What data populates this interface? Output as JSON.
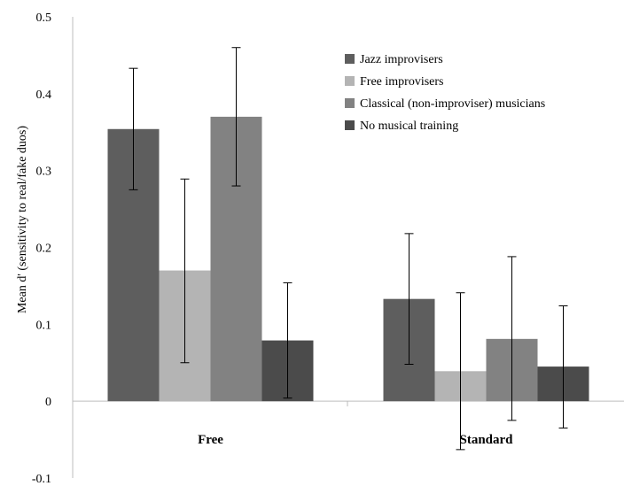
{
  "chart_data": {
    "type": "bar",
    "title": "",
    "xlabel": "",
    "ylabel": "Mean d' (sensitivity to real/fake duos)",
    "ylim": [
      -0.1,
      0.5
    ],
    "yticks": [
      "-0.1",
      "0",
      "0.1",
      "0.2",
      "0.3",
      "0.4",
      "0.5"
    ],
    "categories": [
      "Free",
      "Standard"
    ],
    "grid": false,
    "legend": "top-right",
    "error_bars": true,
    "series": [
      {
        "name": "Jazz improvisers",
        "color": "#5e5e5e",
        "values": [
          0.354,
          0.133
        ],
        "err_low": [
          0.275,
          0.048
        ],
        "err_high": [
          0.433,
          0.218
        ]
      },
      {
        "name": "Free improvisers",
        "color": "#b4b4b4",
        "values": [
          0.17,
          0.039
        ],
        "err_low": [
          0.05,
          -0.063
        ],
        "err_high": [
          0.289,
          0.141
        ]
      },
      {
        "name": "Classical (non-improviser) musicians",
        "color": "#828282",
        "values": [
          0.37,
          0.081
        ],
        "err_low": [
          0.28,
          -0.025
        ],
        "err_high": [
          0.46,
          0.188
        ]
      },
      {
        "name": "No musical training",
        "color": "#4b4b4b",
        "values": [
          0.079,
          0.045
        ],
        "err_low": [
          0.004,
          -0.035
        ],
        "err_high": [
          0.154,
          0.124
        ]
      }
    ]
  }
}
